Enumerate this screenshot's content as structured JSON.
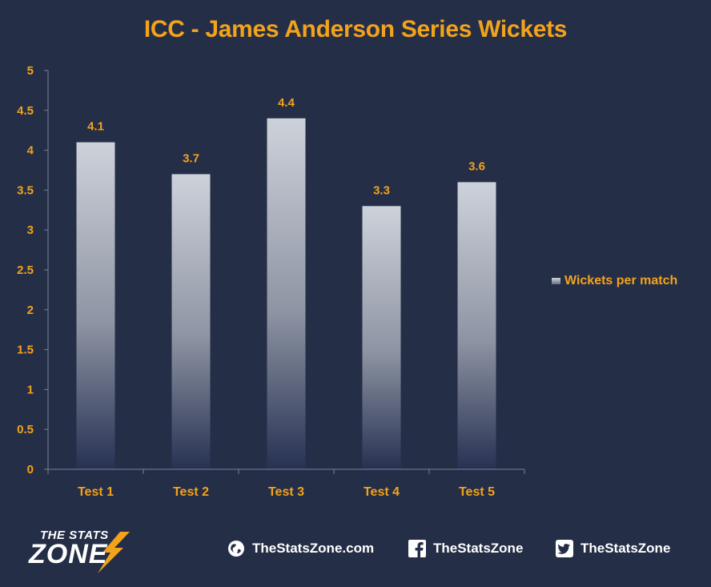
{
  "chart_data": {
    "type": "bar",
    "title": "ICC - James Anderson Series Wickets",
    "categories": [
      "Test 1",
      "Test 2",
      "Test 3",
      "Test 4",
      "Test 5"
    ],
    "series": [
      {
        "name": "Wickets per match",
        "values": [
          4.1,
          3.7,
          4.4,
          3.3,
          3.6
        ]
      }
    ],
    "data_labels": [
      "4.1",
      "3.7",
      "4.4",
      "3.3",
      "3.6"
    ],
    "y_ticks": [
      "0",
      "0.5",
      "1",
      "1.5",
      "2",
      "2.5",
      "3",
      "3.5",
      "4",
      "4.5",
      "5"
    ],
    "ylim": [
      0,
      5
    ],
    "grid": false,
    "legend_position": "right",
    "colors": {
      "accent": "#f3a31b",
      "background": "#252e47",
      "bar_top": "#cdd2da",
      "bar_bottom": "#273152",
      "axis": "#7a8095"
    }
  },
  "footer": {
    "brand_top": "THE STATS",
    "brand_bottom": "ZONE",
    "website": "TheStatsZone.com",
    "facebook": "TheStatsZone",
    "twitter": "TheStatsZone",
    "icons": [
      "globe-icon",
      "facebook-icon",
      "twitter-icon"
    ]
  }
}
